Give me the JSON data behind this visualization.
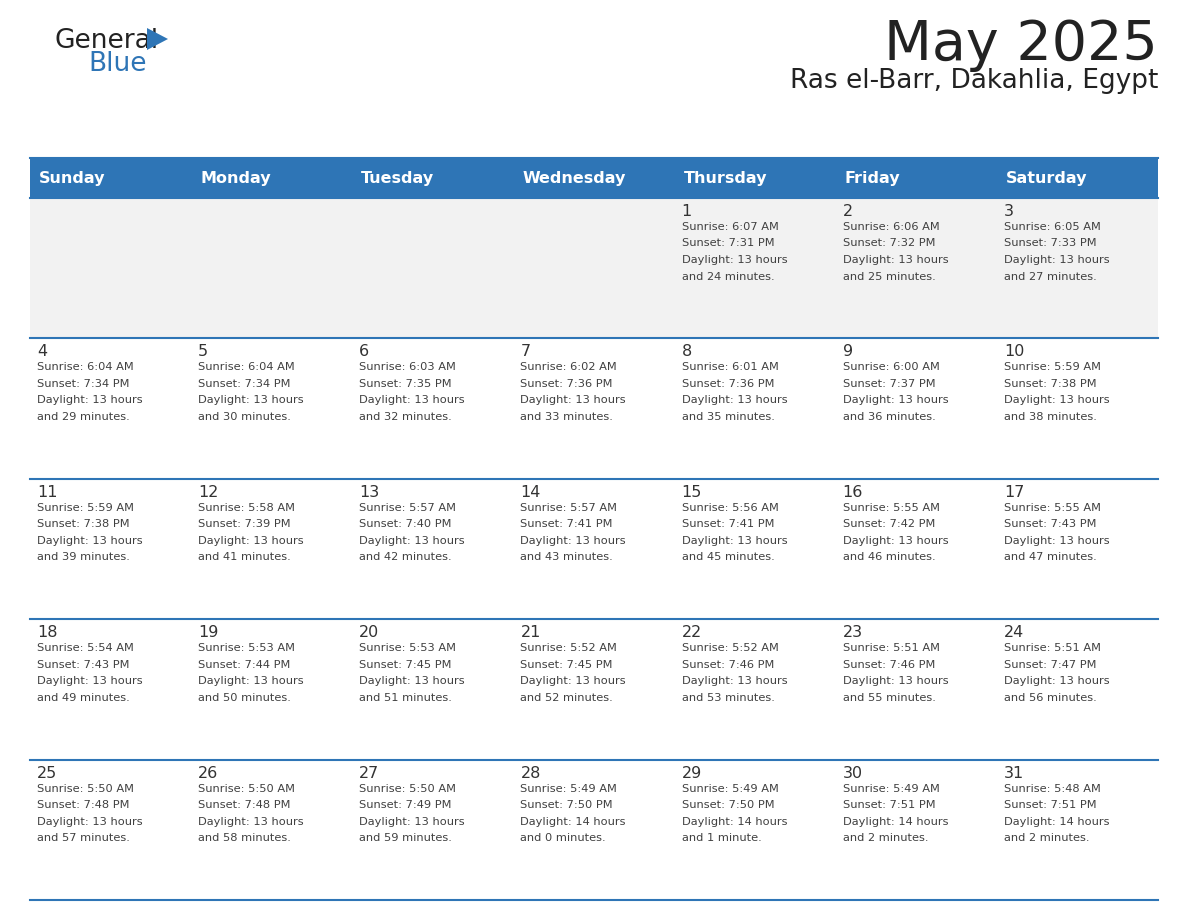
{
  "title": "May 2025",
  "subtitle": "Ras el-Barr, Dakahlia, Egypt",
  "days_of_week": [
    "Sunday",
    "Monday",
    "Tuesday",
    "Wednesday",
    "Thursday",
    "Friday",
    "Saturday"
  ],
  "header_bg": "#2E75B6",
  "header_text": "#FFFFFF",
  "row_bg": "#FFFFFF",
  "first_row_bg": "#F2F2F2",
  "cell_text_color": "#404040",
  "day_num_color": "#333333",
  "divider_color": "#2E75B6",
  "logo_text_color": "#222222",
  "logo_blue_color": "#2E75B6",
  "title_color": "#222222",
  "subtitle_color": "#222222",
  "calendar": [
    [
      {
        "day": "",
        "sunrise": "",
        "sunset": "",
        "daylight": ""
      },
      {
        "day": "",
        "sunrise": "",
        "sunset": "",
        "daylight": ""
      },
      {
        "day": "",
        "sunrise": "",
        "sunset": "",
        "daylight": ""
      },
      {
        "day": "",
        "sunrise": "",
        "sunset": "",
        "daylight": ""
      },
      {
        "day": "1",
        "sunrise": "6:07 AM",
        "sunset": "7:31 PM",
        "daylight": "13 hours and 24 minutes."
      },
      {
        "day": "2",
        "sunrise": "6:06 AM",
        "sunset": "7:32 PM",
        "daylight": "13 hours and 25 minutes."
      },
      {
        "day": "3",
        "sunrise": "6:05 AM",
        "sunset": "7:33 PM",
        "daylight": "13 hours and 27 minutes."
      }
    ],
    [
      {
        "day": "4",
        "sunrise": "6:04 AM",
        "sunset": "7:34 PM",
        "daylight": "13 hours and 29 minutes."
      },
      {
        "day": "5",
        "sunrise": "6:04 AM",
        "sunset": "7:34 PM",
        "daylight": "13 hours and 30 minutes."
      },
      {
        "day": "6",
        "sunrise": "6:03 AM",
        "sunset": "7:35 PM",
        "daylight": "13 hours and 32 minutes."
      },
      {
        "day": "7",
        "sunrise": "6:02 AM",
        "sunset": "7:36 PM",
        "daylight": "13 hours and 33 minutes."
      },
      {
        "day": "8",
        "sunrise": "6:01 AM",
        "sunset": "7:36 PM",
        "daylight": "13 hours and 35 minutes."
      },
      {
        "day": "9",
        "sunrise": "6:00 AM",
        "sunset": "7:37 PM",
        "daylight": "13 hours and 36 minutes."
      },
      {
        "day": "10",
        "sunrise": "5:59 AM",
        "sunset": "7:38 PM",
        "daylight": "13 hours and 38 minutes."
      }
    ],
    [
      {
        "day": "11",
        "sunrise": "5:59 AM",
        "sunset": "7:38 PM",
        "daylight": "13 hours and 39 minutes."
      },
      {
        "day": "12",
        "sunrise": "5:58 AM",
        "sunset": "7:39 PM",
        "daylight": "13 hours and 41 minutes."
      },
      {
        "day": "13",
        "sunrise": "5:57 AM",
        "sunset": "7:40 PM",
        "daylight": "13 hours and 42 minutes."
      },
      {
        "day": "14",
        "sunrise": "5:57 AM",
        "sunset": "7:41 PM",
        "daylight": "13 hours and 43 minutes."
      },
      {
        "day": "15",
        "sunrise": "5:56 AM",
        "sunset": "7:41 PM",
        "daylight": "13 hours and 45 minutes."
      },
      {
        "day": "16",
        "sunrise": "5:55 AM",
        "sunset": "7:42 PM",
        "daylight": "13 hours and 46 minutes."
      },
      {
        "day": "17",
        "sunrise": "5:55 AM",
        "sunset": "7:43 PM",
        "daylight": "13 hours and 47 minutes."
      }
    ],
    [
      {
        "day": "18",
        "sunrise": "5:54 AM",
        "sunset": "7:43 PM",
        "daylight": "13 hours and 49 minutes."
      },
      {
        "day": "19",
        "sunrise": "5:53 AM",
        "sunset": "7:44 PM",
        "daylight": "13 hours and 50 minutes."
      },
      {
        "day": "20",
        "sunrise": "5:53 AM",
        "sunset": "7:45 PM",
        "daylight": "13 hours and 51 minutes."
      },
      {
        "day": "21",
        "sunrise": "5:52 AM",
        "sunset": "7:45 PM",
        "daylight": "13 hours and 52 minutes."
      },
      {
        "day": "22",
        "sunrise": "5:52 AM",
        "sunset": "7:46 PM",
        "daylight": "13 hours and 53 minutes."
      },
      {
        "day": "23",
        "sunrise": "5:51 AM",
        "sunset": "7:46 PM",
        "daylight": "13 hours and 55 minutes."
      },
      {
        "day": "24",
        "sunrise": "5:51 AM",
        "sunset": "7:47 PM",
        "daylight": "13 hours and 56 minutes."
      }
    ],
    [
      {
        "day": "25",
        "sunrise": "5:50 AM",
        "sunset": "7:48 PM",
        "daylight": "13 hours and 57 minutes."
      },
      {
        "day": "26",
        "sunrise": "5:50 AM",
        "sunset": "7:48 PM",
        "daylight": "13 hours and 58 minutes."
      },
      {
        "day": "27",
        "sunrise": "5:50 AM",
        "sunset": "7:49 PM",
        "daylight": "13 hours and 59 minutes."
      },
      {
        "day": "28",
        "sunrise": "5:49 AM",
        "sunset": "7:50 PM",
        "daylight": "14 hours and 0 minutes."
      },
      {
        "day": "29",
        "sunrise": "5:49 AM",
        "sunset": "7:50 PM",
        "daylight": "14 hours and 1 minute."
      },
      {
        "day": "30",
        "sunrise": "5:49 AM",
        "sunset": "7:51 PM",
        "daylight": "14 hours and 2 minutes."
      },
      {
        "day": "31",
        "sunrise": "5:48 AM",
        "sunset": "7:51 PM",
        "daylight": "14 hours and 2 minutes."
      }
    ]
  ]
}
